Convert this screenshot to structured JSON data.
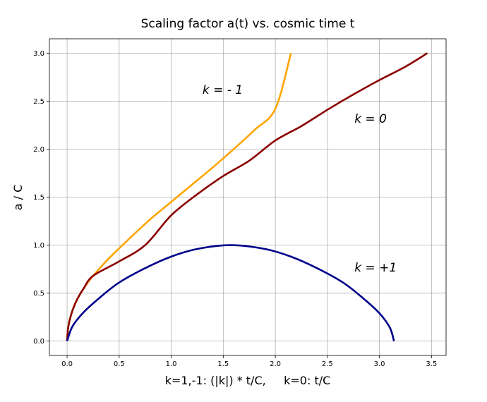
{
  "chart_data": {
    "type": "line",
    "title": "Scaling factor a(t) vs. cosmic time t",
    "xlabel": "k=1,-1: (|k|) * t/C,     k=0: t/C",
    "ylabel": "a / C",
    "xlim": [
      -0.17,
      3.64
    ],
    "ylim": [
      -0.15,
      3.15
    ],
    "x_ticks": [
      0.0,
      0.5,
      1.0,
      1.5,
      2.0,
      2.5,
      3.0,
      3.5
    ],
    "x_tick_labels": [
      "0.0",
      "0.5",
      "1.0",
      "1.5",
      "2.0",
      "2.5",
      "3.0",
      "3.5"
    ],
    "y_ticks": [
      0.0,
      0.5,
      1.0,
      1.5,
      2.0,
      2.5,
      3.0
    ],
    "y_tick_labels": [
      "0.0",
      "0.5",
      "1.0",
      "1.5",
      "2.0",
      "2.5",
      "3.0"
    ],
    "grid": true,
    "series": [
      {
        "name": "k = - 1",
        "color": "#ffa500",
        "x": [
          0.0,
          0.01,
          0.04,
          0.09,
          0.16,
          0.25,
          0.4,
          0.6,
          0.8,
          1.0,
          1.2,
          1.4,
          1.6,
          1.8,
          2.0,
          2.15
        ],
        "y": [
          0.0,
          0.14,
          0.28,
          0.42,
          0.55,
          0.68,
          0.86,
          1.07,
          1.27,
          1.45,
          1.63,
          1.81,
          2.0,
          2.2,
          2.42,
          3.0
        ]
      },
      {
        "name": "k = 0",
        "color": "#8b0000",
        "x": [
          0.0,
          0.01,
          0.04,
          0.09,
          0.16,
          0.25,
          0.5,
          0.75,
          1.0,
          1.25,
          1.5,
          1.75,
          2.0,
          2.25,
          2.5,
          2.75,
          3.0,
          3.25,
          3.46
        ],
        "y": [
          0.0,
          0.14,
          0.28,
          0.42,
          0.55,
          0.68,
          0.83,
          1.0,
          1.31,
          1.53,
          1.72,
          1.88,
          2.09,
          2.24,
          2.41,
          2.57,
          2.72,
          2.86,
          3.0
        ]
      },
      {
        "name": "k = +1",
        "color": "#00008b",
        "x": [
          0.0,
          0.05,
          0.15,
          0.3,
          0.5,
          0.75,
          1.0,
          1.25,
          1.57,
          1.9,
          2.15,
          2.4,
          2.65,
          2.85,
          3.0,
          3.1,
          3.14
        ],
        "y": [
          0.0,
          0.15,
          0.29,
          0.44,
          0.61,
          0.76,
          0.88,
          0.96,
          1.0,
          0.96,
          0.88,
          0.76,
          0.61,
          0.44,
          0.29,
          0.14,
          0.0
        ]
      }
    ],
    "annotations": [
      {
        "text": "k = - 1",
        "x": 1.3,
        "y": 2.62
      },
      {
        "text": "k = 0",
        "x": 2.76,
        "y": 2.32
      },
      {
        "text": "k = +1",
        "x": 2.76,
        "y": 0.77
      }
    ]
  }
}
